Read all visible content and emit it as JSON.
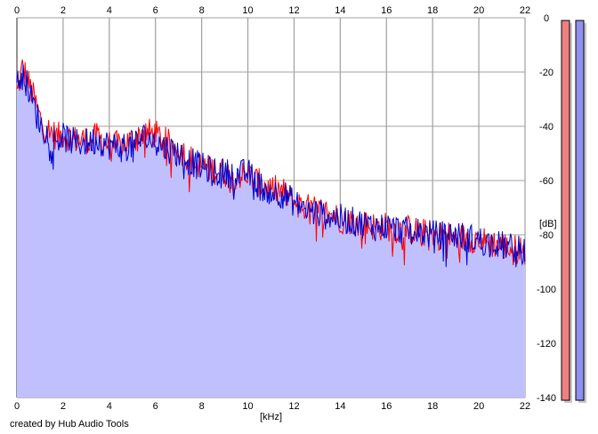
{
  "chart_data": {
    "type": "line",
    "title": "",
    "xlabel": "[kHz]",
    "ylabel": "[dB]",
    "xlim": [
      0,
      22
    ],
    "ylim": [
      -140,
      0
    ],
    "x_ticks": [
      0,
      2,
      4,
      6,
      8,
      10,
      12,
      14,
      16,
      18,
      20,
      22
    ],
    "y_ticks": [
      0,
      -20,
      -40,
      -60,
      -80,
      -100,
      -120,
      -140
    ],
    "grid": true,
    "credit": "created by Hub Audio Tools",
    "colors": {
      "left_channel": "#ff0000",
      "right_channel": "#0000cc",
      "fill": "#c0c0ff",
      "grid": "#a0a0a0",
      "meter_left": "#f08080",
      "meter_right": "#9090f0"
    },
    "series": [
      {
        "x": [
          0,
          0.25,
          0.5,
          0.75,
          1,
          1.25,
          1.5,
          1.75,
          2,
          2.5,
          3,
          3.5,
          4,
          4.5,
          5,
          5.5,
          6,
          6.5,
          7,
          7.5,
          8,
          8.5,
          9,
          9.5,
          10,
          10.5,
          11,
          11.5,
          12,
          12.5,
          13,
          13.5,
          14,
          14.5,
          15,
          15.5,
          16,
          16.5,
          17,
          17.5,
          18,
          18.5,
          19,
          19.5,
          20,
          20.5,
          21,
          21.5,
          22
        ],
        "values": [
          -28,
          -18,
          -24,
          -30,
          -37,
          -41,
          -42,
          -44,
          -43,
          -45,
          -45,
          -44,
          -47,
          -47,
          -45,
          -42,
          -43,
          -46,
          -48,
          -52,
          -55,
          -56,
          -57,
          -58,
          -58,
          -61,
          -63,
          -64,
          -68,
          -70,
          -71,
          -72,
          -74,
          -75,
          -76,
          -77,
          -77,
          -78,
          -78,
          -79,
          -80,
          -80,
          -81,
          -81,
          -82,
          -83,
          -84,
          -85,
          -86
        ]
      },
      {
        "x": [
          0,
          0.25,
          0.5,
          0.75,
          1,
          1.25,
          1.5,
          1.75,
          2,
          2.5,
          3,
          3.5,
          4,
          4.5,
          5,
          5.5,
          6,
          6.5,
          7,
          7.5,
          8,
          8.5,
          9,
          9.5,
          10,
          10.5,
          11,
          11.5,
          12,
          12.5,
          13,
          13.5,
          14,
          14.5,
          15,
          15.5,
          16,
          16.5,
          17,
          17.5,
          18,
          18.5,
          19,
          19.5,
          20,
          20.5,
          21,
          21.5,
          22
        ],
        "values": [
          -25,
          -20,
          -26,
          -33,
          -39,
          -42,
          -44,
          -45,
          -44,
          -46,
          -46,
          -45,
          -47,
          -48,
          -47,
          -44,
          -46,
          -48,
          -50,
          -53,
          -55,
          -57,
          -57,
          -58,
          -57,
          -62,
          -64,
          -65,
          -68,
          -71,
          -72,
          -73,
          -74,
          -75,
          -76,
          -77,
          -77,
          -78,
          -79,
          -79,
          -80,
          -80,
          -80,
          -81,
          -82,
          -83,
          -84,
          -85,
          -86
        ]
      }
    ],
    "meters": [
      {
        "level_top_db": -1,
        "level_bottom_db": -141
      },
      {
        "level_top_db": -1,
        "level_bottom_db": -141
      }
    ]
  }
}
